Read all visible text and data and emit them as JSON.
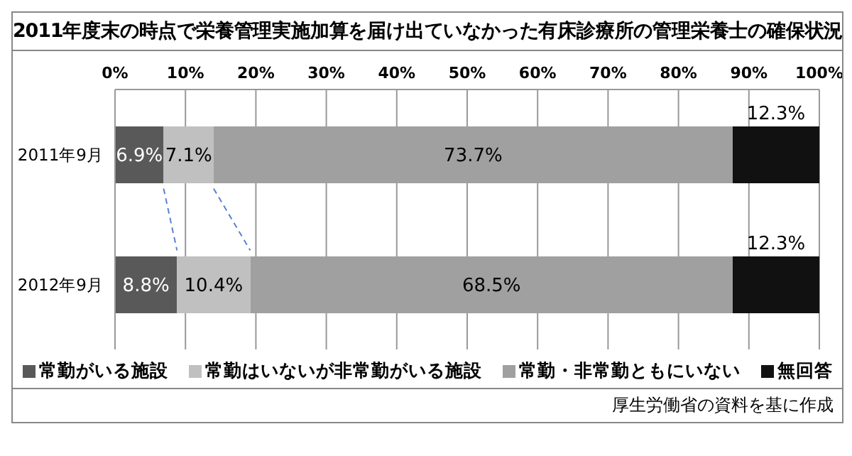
{
  "chart_data": {
    "type": "bar",
    "orientation": "horizontal",
    "stacked": true,
    "title": "2011年度末の時点で栄養管理実施加算を届け出ていなかった有床診療所の管理栄養士の確保状況",
    "categories": [
      "2011年9月",
      "2012年9月"
    ],
    "series": [
      {
        "name": "常勤がいる施設",
        "color": "#595959",
        "values": [
          6.9,
          8.8
        ],
        "value_labels": [
          "6.9%",
          "8.8%"
        ]
      },
      {
        "name": "常勤はいないが非常勤がいる施設",
        "color": "#c0c0c0",
        "values": [
          7.1,
          10.4
        ],
        "value_labels": [
          "7.1%",
          "10.4%"
        ]
      },
      {
        "name": "常勤・非常勤ともにいない",
        "color": "#a0a0a0",
        "values": [
          73.7,
          68.5
        ],
        "value_labels": [
          "73.7%",
          "68.5%"
        ]
      },
      {
        "name": "無回答",
        "color": "#111111",
        "values": [
          12.3,
          12.3
        ],
        "value_labels": [
          "12.3%",
          "12.3%"
        ]
      }
    ],
    "xlim": [
      0,
      100
    ],
    "xticks": [
      {
        "value": 0,
        "label": "0%"
      },
      {
        "value": 10,
        "label": "10%"
      },
      {
        "value": 20,
        "label": "20%"
      },
      {
        "value": 30,
        "label": "30%"
      },
      {
        "value": 40,
        "label": "40%"
      },
      {
        "value": 50,
        "label": "50%"
      },
      {
        "value": 60,
        "label": "60%"
      },
      {
        "value": 70,
        "label": "70%"
      },
      {
        "value": 80,
        "label": "80%"
      },
      {
        "value": 90,
        "label": "90%"
      },
      {
        "value": 100,
        "label": "100%"
      }
    ],
    "grid": "x",
    "legend": "bottom",
    "annotations": [
      "厚生労働省の資料を基に作成"
    ]
  }
}
